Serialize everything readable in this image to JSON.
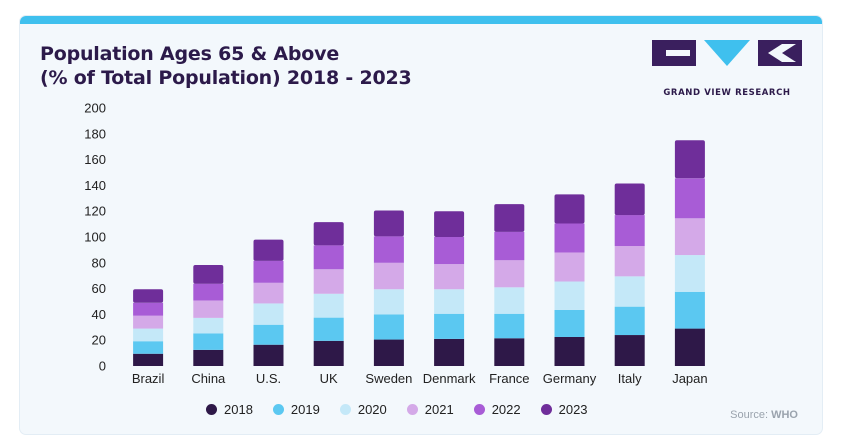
{
  "title_line1": "Population Ages 65 & Above",
  "title_line2": "(% of Total Population) 2018 - 2023",
  "logo_text": "GRAND VIEW RESEARCH",
  "source_label": "Source:",
  "source_value": "WHO",
  "colors": {
    "topbar": "#3fc0ee",
    "title": "#2c1a4a",
    "series": [
      "#2e1848",
      "#5bc8f1",
      "#c4e8f8",
      "#d4a9e8",
      "#a85cd6",
      "#6f2e9a"
    ]
  },
  "chart_data": {
    "type": "bar",
    "stacked": true,
    "categories": [
      "Brazil",
      "China",
      "U.S.",
      "UK",
      "Sweden",
      "Denmark",
      "France",
      "Germany",
      "Italy",
      "Japan"
    ],
    "yticks": [
      0,
      20,
      40,
      60,
      80,
      100,
      120,
      140,
      160,
      180,
      200
    ],
    "ylim": [
      0,
      200
    ],
    "grid": false,
    "legend_position": "bottom",
    "series": [
      {
        "name": "2018",
        "values": [
          9.5,
          12.5,
          16.5,
          19.5,
          20.5,
          21.0,
          21.5,
          22.5,
          24.0,
          29.0
        ]
      },
      {
        "name": "2019",
        "values": [
          9.7,
          12.8,
          15.5,
          18.0,
          19.5,
          19.5,
          19.0,
          21.0,
          22.0,
          28.5
        ]
      },
      {
        "name": "2020",
        "values": [
          9.8,
          12.0,
          16.5,
          18.5,
          19.5,
          19.0,
          20.5,
          22.0,
          23.5,
          28.5
        ]
      },
      {
        "name": "2021",
        "values": [
          10.0,
          13.5,
          16.0,
          19.0,
          20.5,
          19.5,
          21.0,
          22.5,
          23.5,
          28.5
        ]
      },
      {
        "name": "2022",
        "values": [
          10.0,
          13.0,
          17.0,
          18.5,
          20.5,
          21.0,
          22.0,
          22.5,
          24.0,
          31.0
        ]
      },
      {
        "name": "2023",
        "values": [
          10.5,
          14.5,
          16.5,
          18.0,
          20.0,
          20.0,
          21.5,
          22.5,
          24.5,
          29.5
        ]
      }
    ]
  }
}
